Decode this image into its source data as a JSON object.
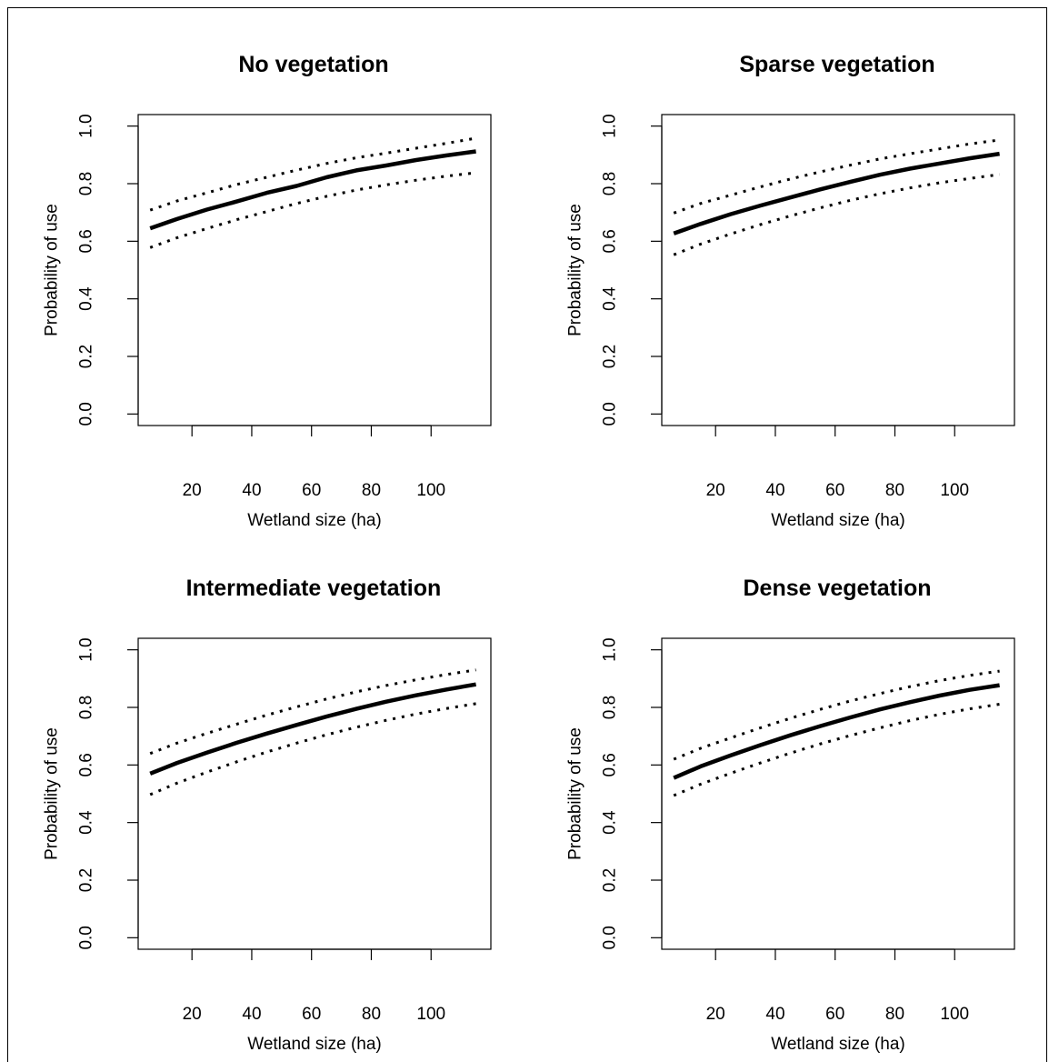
{
  "chart_data": [
    {
      "type": "line",
      "title": "No vegetation",
      "xlabel": "Wetland size (ha)",
      "ylabel": "Probability of use",
      "xlim": [
        2,
        120
      ],
      "ylim": [
        0,
        1
      ],
      "xticks": [
        "20",
        "40",
        "60",
        "80",
        "100"
      ],
      "yticks": [
        "0.0",
        "0.2",
        "0.4",
        "0.6",
        "0.8",
        "1.0"
      ],
      "x": [
        6,
        15,
        25,
        35,
        45,
        55,
        65,
        75,
        85,
        95,
        105,
        115
      ],
      "series": [
        {
          "style": "solid",
          "values": [
            0.645,
            0.677,
            0.71,
            0.738,
            0.768,
            0.792,
            0.822,
            0.846,
            0.863,
            0.882,
            0.898,
            0.912
          ]
        },
        {
          "style": "dotted",
          "values": [
            0.708,
            0.74,
            0.768,
            0.797,
            0.822,
            0.847,
            0.87,
            0.89,
            0.906,
            0.923,
            0.94,
            0.958
          ]
        },
        {
          "style": "dotted",
          "values": [
            0.578,
            0.612,
            0.644,
            0.675,
            0.703,
            0.731,
            0.756,
            0.778,
            0.796,
            0.812,
            0.826,
            0.838
          ]
        }
      ]
    },
    {
      "type": "line",
      "title": "Sparse vegetation",
      "xlabel": "Wetland size (ha)",
      "ylabel": "Probability of use",
      "xlim": [
        2,
        120
      ],
      "ylim": [
        0,
        1
      ],
      "xticks": [
        "20",
        "40",
        "60",
        "80",
        "100"
      ],
      "yticks": [
        "0.0",
        "0.2",
        "0.4",
        "0.6",
        "0.8",
        "1.0"
      ],
      "x": [
        6,
        15,
        25,
        35,
        45,
        55,
        65,
        75,
        85,
        95,
        105,
        115
      ],
      "series": [
        {
          "style": "solid",
          "values": [
            0.627,
            0.66,
            0.694,
            0.724,
            0.752,
            0.78,
            0.806,
            0.831,
            0.852,
            0.87,
            0.888,
            0.904
          ]
        },
        {
          "style": "dotted",
          "values": [
            0.698,
            0.731,
            0.76,
            0.789,
            0.816,
            0.841,
            0.864,
            0.886,
            0.904,
            0.921,
            0.938,
            0.952
          ]
        },
        {
          "style": "dotted",
          "values": [
            0.553,
            0.59,
            0.625,
            0.658,
            0.688,
            0.716,
            0.742,
            0.765,
            0.785,
            0.803,
            0.818,
            0.832
          ]
        }
      ]
    },
    {
      "type": "line",
      "title": "Intermediate vegetation",
      "xlabel": "Wetland size (ha)",
      "ylabel": "Probability of use",
      "xlim": [
        2,
        120
      ],
      "ylim": [
        0,
        1
      ],
      "xticks": [
        "20",
        "40",
        "60",
        "80",
        "100"
      ],
      "yticks": [
        "0.0",
        "0.2",
        "0.4",
        "0.6",
        "0.8",
        "1.0"
      ],
      "x": [
        6,
        15,
        25,
        35,
        45,
        55,
        65,
        75,
        85,
        95,
        105,
        115
      ],
      "series": [
        {
          "style": "solid",
          "values": [
            0.57,
            0.607,
            0.643,
            0.677,
            0.709,
            0.739,
            0.768,
            0.795,
            0.82,
            0.842,
            0.862,
            0.88
          ]
        },
        {
          "style": "dotted",
          "values": [
            0.64,
            0.676,
            0.71,
            0.742,
            0.773,
            0.802,
            0.829,
            0.854,
            0.876,
            0.896,
            0.914,
            0.93
          ]
        },
        {
          "style": "dotted",
          "values": [
            0.497,
            0.537,
            0.575,
            0.611,
            0.645,
            0.676,
            0.705,
            0.731,
            0.755,
            0.777,
            0.796,
            0.813
          ]
        }
      ]
    },
    {
      "type": "line",
      "title": "Dense vegetation",
      "xlabel": "Wetland size (ha)",
      "ylabel": "Probability of use",
      "xlim": [
        2,
        120
      ],
      "ylim": [
        0,
        1
      ],
      "xticks": [
        "20",
        "40",
        "60",
        "80",
        "100"
      ],
      "yticks": [
        "0.0",
        "0.2",
        "0.4",
        "0.6",
        "0.8",
        "1.0"
      ],
      "x": [
        6,
        15,
        25,
        35,
        45,
        55,
        65,
        75,
        85,
        95,
        105,
        115
      ],
      "series": [
        {
          "style": "solid",
          "values": [
            0.555,
            0.595,
            0.633,
            0.669,
            0.703,
            0.735,
            0.765,
            0.793,
            0.818,
            0.841,
            0.861,
            0.877
          ]
        },
        {
          "style": "dotted",
          "values": [
            0.62,
            0.658,
            0.694,
            0.729,
            0.762,
            0.793,
            0.822,
            0.848,
            0.872,
            0.893,
            0.911,
            0.926
          ]
        },
        {
          "style": "dotted",
          "values": [
            0.494,
            0.533,
            0.571,
            0.607,
            0.641,
            0.673,
            0.702,
            0.729,
            0.754,
            0.776,
            0.795,
            0.811
          ]
        }
      ]
    }
  ]
}
